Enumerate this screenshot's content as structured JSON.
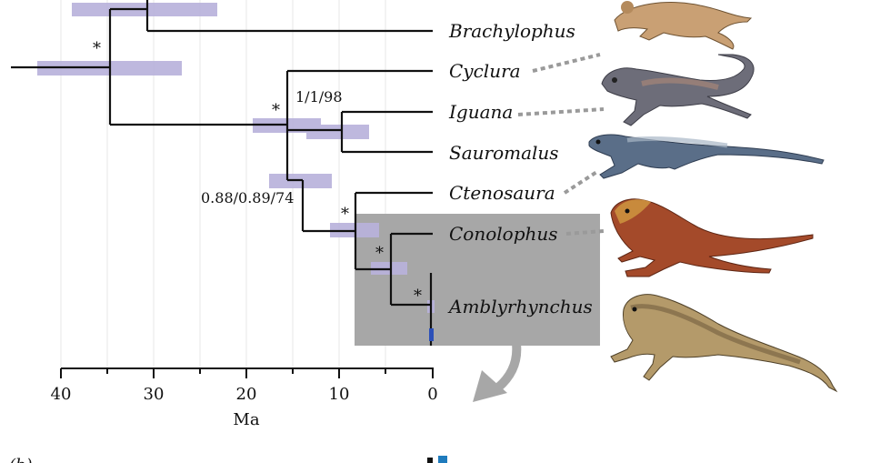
{
  "tree": {
    "taxa": [
      "Brachylophus",
      "Cyclura",
      "Iguana",
      "Sauromalus",
      "Ctenosaura",
      "Conolophus",
      "Amblyrhynchus"
    ],
    "support_labels": [
      "1/1/98",
      "0.88/0.89/74"
    ],
    "star": "*",
    "bar_color": "#b9b2dc",
    "highlight_color": "#a7a7a7"
  },
  "axis": {
    "title": "Ma",
    "ticks": [
      "40",
      "30",
      "20",
      "10",
      "0"
    ]
  },
  "figure": {
    "next_panel_label": "(b)"
  },
  "images": {
    "species": [
      "brachylophus",
      "cyclura",
      "iguana",
      "ctenosaura",
      "conolophus",
      "amblyrhynchus"
    ]
  }
}
